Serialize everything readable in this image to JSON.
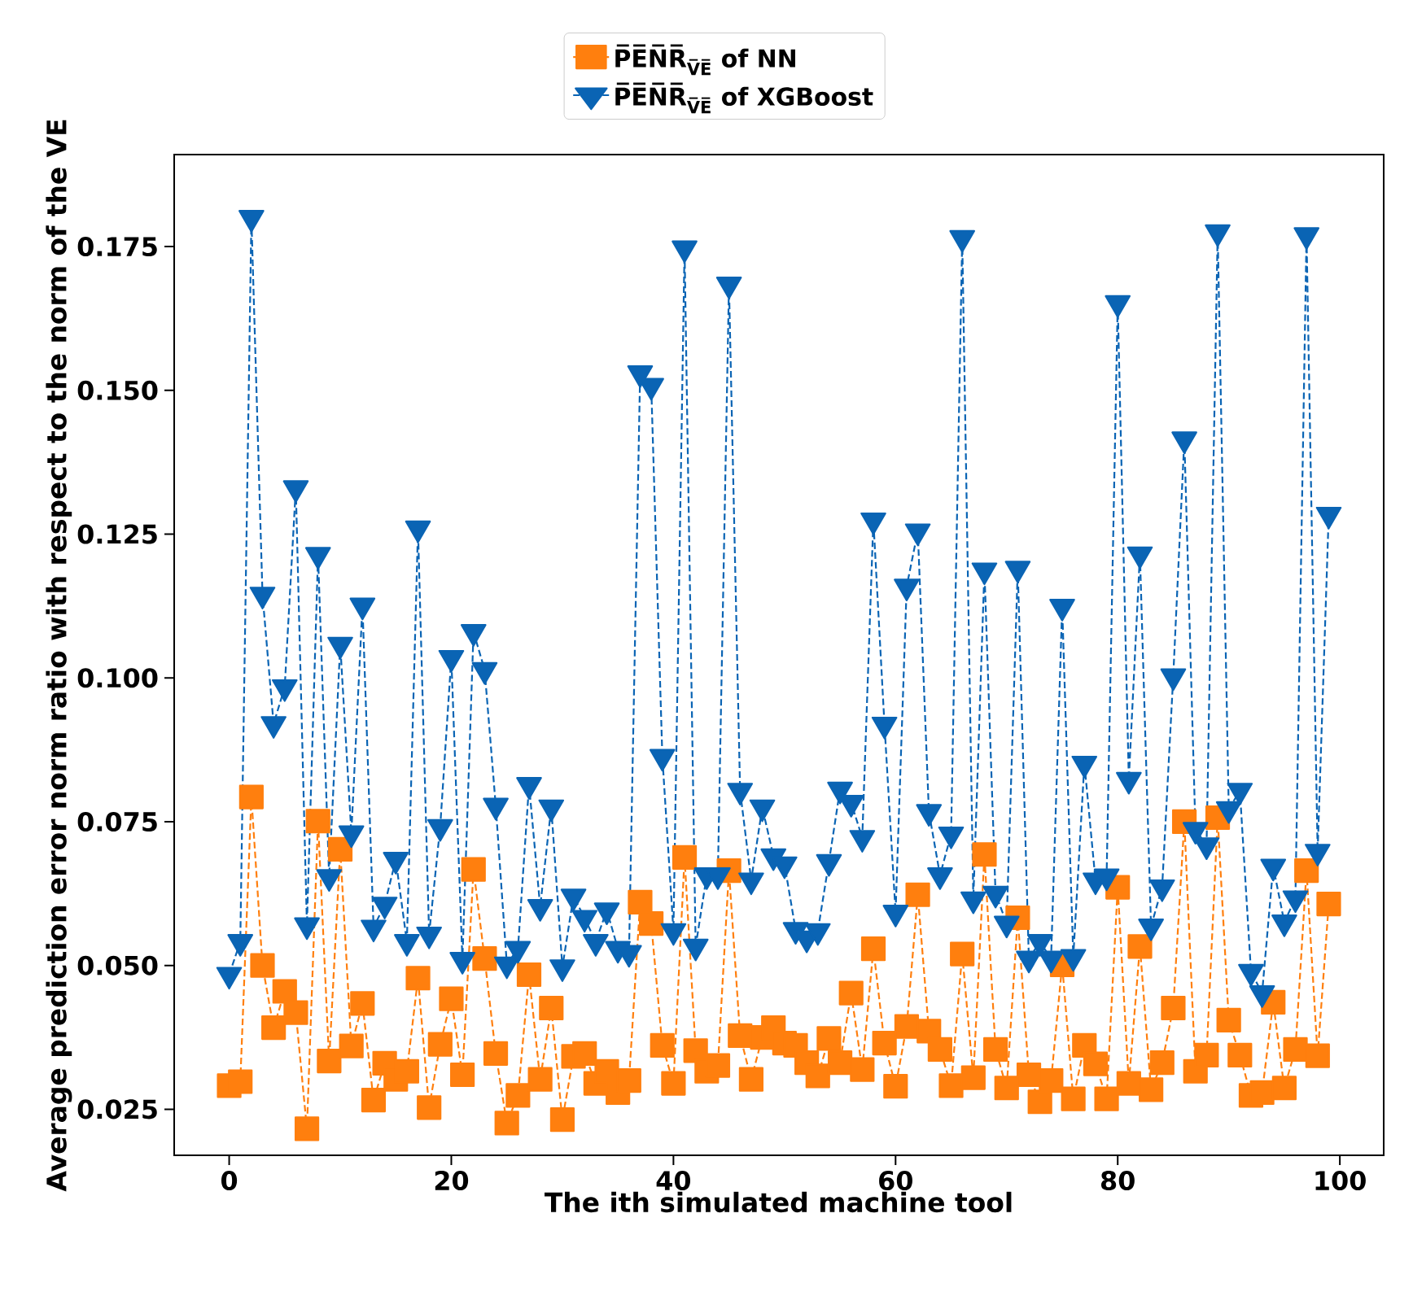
{
  "chart_data": {
    "type": "line",
    "xlabel": "The ith simulated machine tool",
    "ylabel": "Average prediction error norm ratio with respect to the norm of the VE",
    "x": [
      0,
      1,
      2,
      3,
      4,
      5,
      6,
      7,
      8,
      9,
      10,
      11,
      12,
      13,
      14,
      15,
      16,
      17,
      18,
      19,
      20,
      21,
      22,
      23,
      24,
      25,
      26,
      27,
      28,
      29,
      30,
      31,
      32,
      33,
      34,
      35,
      36,
      37,
      38,
      39,
      40,
      41,
      42,
      43,
      44,
      45,
      46,
      47,
      48,
      49,
      50,
      51,
      52,
      53,
      54,
      55,
      56,
      57,
      58,
      59,
      60,
      61,
      62,
      63,
      64,
      65,
      66,
      67,
      68,
      69,
      70,
      71,
      72,
      73,
      74,
      75,
      76,
      77,
      78,
      79,
      80,
      81,
      82,
      83,
      84,
      85,
      86,
      87,
      88,
      89,
      90,
      91,
      92,
      93,
      94,
      95,
      96,
      97,
      98,
      99
    ],
    "series": [
      {
        "name": "P̅E̅N̅R̅$_{V̅E̅}$ of NN",
        "color": "#ff7f0e",
        "marker": "square",
        "values": [
          0.0291,
          0.0298,
          0.0793,
          0.05,
          0.0392,
          0.0455,
          0.0418,
          0.0216,
          0.0751,
          0.0334,
          0.0702,
          0.036,
          0.0434,
          0.0266,
          0.033,
          0.0302,
          0.0316,
          0.0478,
          0.0253,
          0.0363,
          0.0442,
          0.031,
          0.0667,
          0.0512,
          0.0347,
          0.0226,
          0.0274,
          0.0484,
          0.0302,
          0.0426,
          0.0232,
          0.0342,
          0.0347,
          0.0295,
          0.0316,
          0.0279,
          0.03,
          0.061,
          0.0573,
          0.0361,
          0.0295,
          0.0688,
          0.0352,
          0.0316,
          0.0326,
          0.0665,
          0.0378,
          0.0302,
          0.0375,
          0.0392,
          0.0365,
          0.0361,
          0.0331,
          0.0308,
          0.0373,
          0.0331,
          0.0452,
          0.0319,
          0.0529,
          0.0365,
          0.029,
          0.0394,
          0.0623,
          0.0386,
          0.0354,
          0.0291,
          0.052,
          0.0305,
          0.0693,
          0.0354,
          0.0287,
          0.0583,
          0.031,
          0.0263,
          0.03,
          0.0501,
          0.0268,
          0.0361,
          0.0329,
          0.0268,
          0.0636,
          0.0295,
          0.0533,
          0.0284,
          0.0331,
          0.0426,
          0.075,
          0.0316,
          0.0344,
          0.0757,
          0.0405,
          0.0344,
          0.0274,
          0.0279,
          0.0436,
          0.0287,
          0.0354,
          0.0665,
          0.0343,
          0.0607
        ]
      },
      {
        "name": "P̅E̅N̅R̅$_{V̅E̅}$ of XGBoost",
        "color": "#0a64b4",
        "marker": "triangle",
        "values": [
          0.0484,
          0.0541,
          0.18,
          0.1145,
          0.092,
          0.0984,
          0.133,
          0.057,
          0.1214,
          0.0654,
          0.1058,
          0.073,
          0.1126,
          0.0566,
          0.0606,
          0.0684,
          0.0541,
          0.126,
          0.0554,
          0.0741,
          0.1035,
          0.051,
          0.108,
          0.1014,
          0.0778,
          0.0502,
          0.0529,
          0.0814,
          0.0602,
          0.0775,
          0.0497,
          0.062,
          0.0583,
          0.0541,
          0.0596,
          0.0529,
          0.0522,
          0.153,
          0.1508,
          0.0863,
          0.056,
          0.1747,
          0.0533,
          0.0657,
          0.0657,
          0.1684,
          0.0804,
          0.0648,
          0.0775,
          0.069,
          0.0676,
          0.0562,
          0.0547,
          0.056,
          0.068,
          0.0806,
          0.0783,
          0.0722,
          0.1274,
          0.0919,
          0.0592,
          0.1159,
          0.1255,
          0.0767,
          0.0657,
          0.0728,
          0.1765,
          0.0615,
          0.1187,
          0.0625,
          0.0573,
          0.119,
          0.0512,
          0.0541,
          0.0512,
          0.1124,
          0.0515,
          0.0851,
          0.0648,
          0.0655,
          0.1652,
          0.0823,
          0.1215,
          0.0568,
          0.0636,
          0.1003,
          0.1415,
          0.0736,
          0.0709,
          0.1775,
          0.0772,
          0.0804,
          0.0489,
          0.0452,
          0.0672,
          0.0575,
          0.0617,
          0.177,
          0.0698,
          0.1284
        ]
      }
    ],
    "xlim": [
      -4.95,
      103.95
    ],
    "ylim": [
      0.017,
      0.191
    ],
    "xticks": [
      0,
      20,
      40,
      60,
      80,
      100
    ],
    "yticks": [
      {
        "value": 0.025,
        "label": "0.025"
      },
      {
        "value": 0.05,
        "label": "0.050"
      },
      {
        "value": 0.075,
        "label": "0.075"
      },
      {
        "value": 0.1,
        "label": "0.100"
      },
      {
        "value": 0.125,
        "label": "0.125"
      },
      {
        "value": 0.15,
        "label": "0.150"
      },
      {
        "value": 0.175,
        "label": "0.175"
      }
    ],
    "line_style": "dashed",
    "legend": "top",
    "grid": false
  }
}
